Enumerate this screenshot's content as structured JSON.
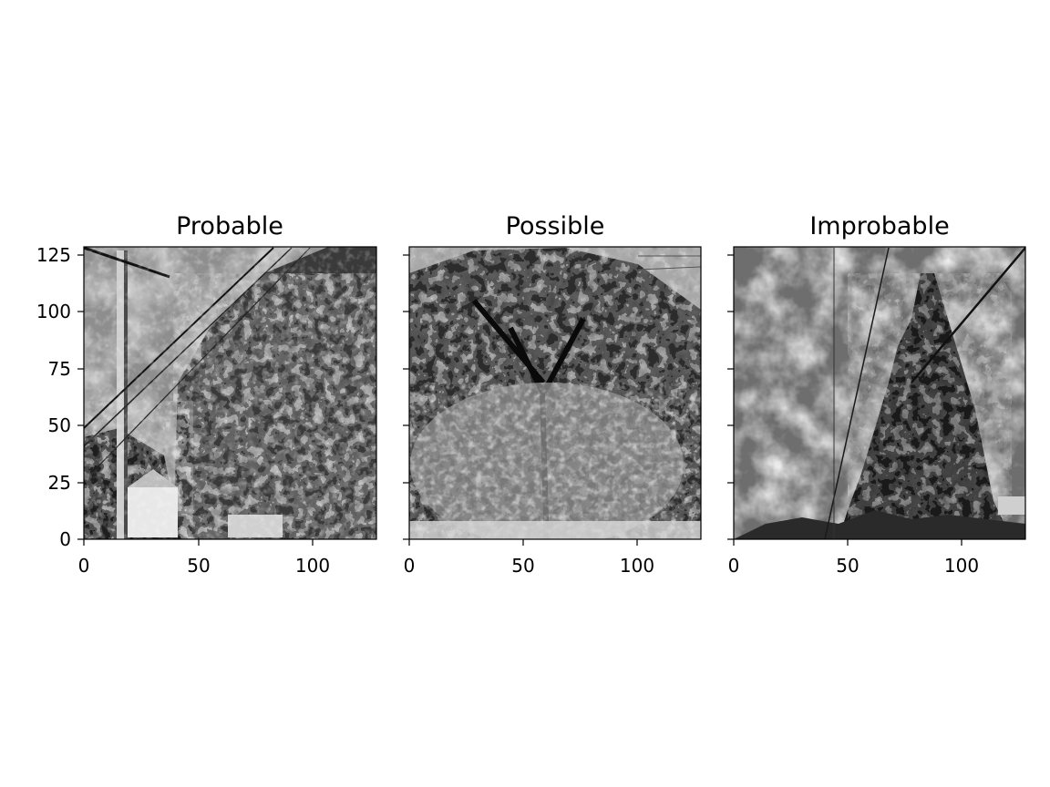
{
  "figure": {
    "panels": [
      {
        "title": "Probable",
        "scene": "utility-pole-and-trees"
      },
      {
        "title": "Possible",
        "scene": "large-tree"
      },
      {
        "title": "Improbable",
        "scene": "cloudy-sky-conifer"
      }
    ]
  },
  "chart_data": {
    "type": "image-grid",
    "colormap": "grayscale",
    "panels": [
      {
        "title": "Probable",
        "xlim": [
          0,
          128
        ],
        "ylim": [
          0,
          128
        ],
        "xticks": [
          0,
          50,
          100
        ],
        "yticks": [
          0,
          25,
          50,
          75,
          100,
          125
        ],
        "ytick_labels_visible": true
      },
      {
        "title": "Possible",
        "xlim": [
          0,
          128
        ],
        "ylim": [
          0,
          128
        ],
        "xticks": [
          0,
          50,
          100
        ],
        "yticks": [
          0,
          25,
          50,
          75,
          100,
          125
        ],
        "ytick_labels_visible": false
      },
      {
        "title": "Improbable",
        "xlim": [
          0,
          128
        ],
        "ylim": [
          0,
          128
        ],
        "xticks": [
          0,
          50,
          100
        ],
        "yticks": [
          0,
          25,
          50,
          75,
          100,
          125
        ],
        "ytick_labels_visible": false
      }
    ]
  }
}
